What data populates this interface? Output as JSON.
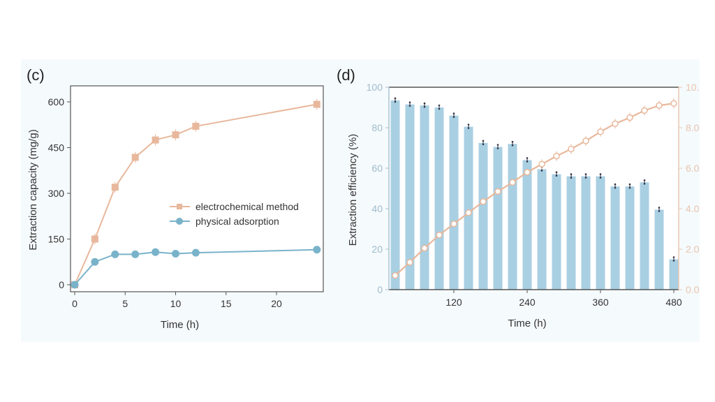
{
  "chart_data": [
    {
      "type": "line",
      "panel_label": "(c)",
      "xlabel": "Time (h)",
      "ylabel": "Extraction capacity (mg/g)",
      "xlim": [
        -0.5,
        25
      ],
      "ylim": [
        -25,
        650
      ],
      "xticks": [
        0,
        5,
        10,
        15,
        20
      ],
      "yticks": [
        0,
        150,
        300,
        450,
        600
      ],
      "legend_position": "center-right",
      "grid": false,
      "x": [
        0,
        2,
        4,
        6,
        8,
        10,
        12,
        24
      ],
      "series": [
        {
          "name": "electrochemical method",
          "marker": "square",
          "color": "#e8b89c",
          "values": [
            0,
            150,
            320,
            418,
            475,
            492,
            520,
            592
          ]
        },
        {
          "name": "physical adsorption",
          "marker": "circle",
          "color": "#79b3ca",
          "values": [
            0,
            75,
            100,
            100,
            107,
            102,
            105,
            115
          ]
        }
      ]
    },
    {
      "type": "bar+line",
      "panel_label": "(d)",
      "xlabel": "Time (h)",
      "ylabel": "Extraction efficiency (%)",
      "xticks": [
        120,
        240,
        360,
        480
      ],
      "yticks_left": [
        0,
        20,
        40,
        60,
        80,
        100
      ],
      "ylim_left": [
        0,
        100
      ],
      "yticks_right": [
        "0.0",
        "2.0k",
        "4.0k",
        "6.0k",
        "8.0k",
        "10.0k"
      ],
      "ylim_right": [
        0,
        10000
      ],
      "grid": false,
      "x": [
        24,
        48,
        72,
        96,
        120,
        144,
        168,
        192,
        216,
        240,
        264,
        288,
        312,
        336,
        360,
        384,
        408,
        432,
        456,
        480
      ],
      "bar_series": {
        "color": "#a9cfe2",
        "values": [
          93.5,
          91.5,
          91,
          90,
          86,
          80.5,
          72.5,
          70.5,
          72,
          64,
          59.5,
          57,
          56,
          56,
          56,
          51,
          51,
          53,
          39.5,
          15
        ]
      },
      "line_series": {
        "color": "#e8b89c",
        "values": [
          700,
          1350,
          2050,
          2700,
          3250,
          3800,
          4350,
          4850,
          5300,
          5800,
          6200,
          6600,
          6950,
          7350,
          7800,
          8200,
          8500,
          8850,
          9100,
          9200
        ]
      }
    }
  ]
}
